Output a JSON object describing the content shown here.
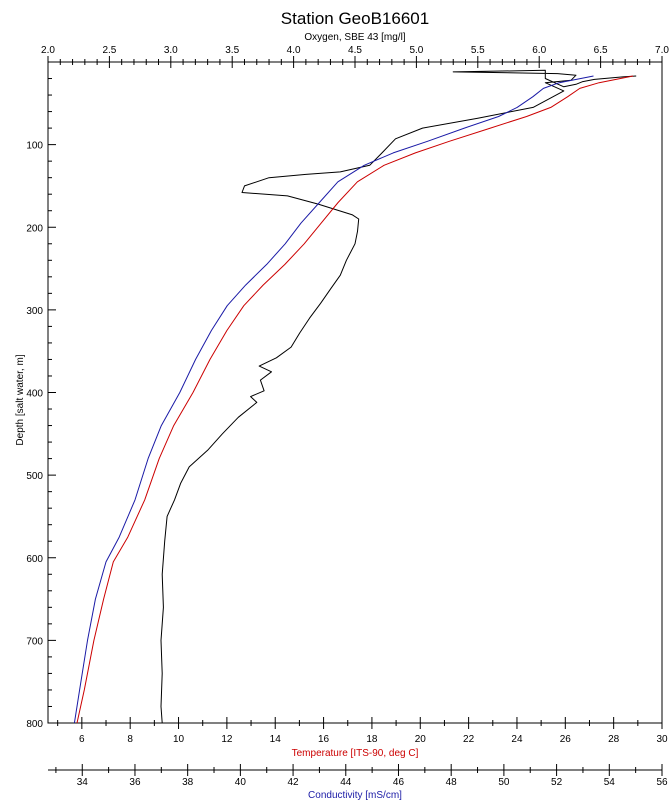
{
  "chart_data": {
    "type": "line",
    "title": "Station GeoB16601",
    "y_axis": {
      "label": "Depth [salt water, m]",
      "range": [
        0,
        800
      ],
      "ticks": [
        100,
        200,
        300,
        400,
        500,
        600,
        700,
        800
      ],
      "inverted": true
    },
    "x_axes": [
      {
        "id": "oxygen",
        "label": "Oxygen, SBE 43 [mg/l]",
        "position": "top",
        "range": [
          2.0,
          7.0
        ],
        "ticks": [
          "2.0",
          "2.5",
          "3.0",
          "3.5",
          "4.0",
          "4.5",
          "5.0",
          "5.5",
          "6.0",
          "6.5",
          "7.0"
        ],
        "color": "#000000"
      },
      {
        "id": "temperature",
        "label": "Temperature [ITS-90, deg C]",
        "position": "bottom",
        "range": [
          4.6,
          30
        ],
        "ticks": [
          "6",
          "8",
          "10",
          "12",
          "14",
          "16",
          "18",
          "20",
          "22",
          "24",
          "26",
          "28",
          "30"
        ],
        "color": "#cc0000"
      },
      {
        "id": "conductivity",
        "label": "Conductivity [mS/cm]",
        "position": "bottom-outer",
        "range": [
          32.7,
          56
        ],
        "ticks": [
          "34",
          "36",
          "38",
          "40",
          "42",
          "44",
          "46",
          "48",
          "50",
          "52",
          "54",
          "56"
        ],
        "color": "#1a1aa6"
      }
    ],
    "series": [
      {
        "axis": "oxygen",
        "color": "#000000",
        "points": [
          [
            6.79,
            17
          ],
          [
            6.68,
            18
          ],
          [
            6.45,
            21
          ],
          [
            6.35,
            24
          ],
          [
            6.3,
            27
          ],
          [
            6.2,
            30
          ],
          [
            6.05,
            20
          ],
          [
            6.05,
            10
          ],
          [
            5.3,
            12
          ],
          [
            6.15,
            14
          ],
          [
            6.3,
            16
          ],
          [
            6.26,
            22
          ],
          [
            6.05,
            25
          ],
          [
            6.2,
            35
          ],
          [
            5.95,
            55
          ],
          [
            5.5,
            68
          ],
          [
            5.05,
            80
          ],
          [
            4.83,
            93
          ],
          [
            4.72,
            110
          ],
          [
            4.62,
            125
          ],
          [
            4.38,
            133
          ],
          [
            4.1,
            136
          ],
          [
            3.8,
            140
          ],
          [
            3.6,
            150
          ],
          [
            3.58,
            158
          ],
          [
            3.95,
            162
          ],
          [
            4.2,
            172
          ],
          [
            4.48,
            185
          ],
          [
            4.53,
            190
          ],
          [
            4.52,
            205
          ],
          [
            4.5,
            220
          ],
          [
            4.43,
            240
          ],
          [
            4.38,
            258
          ],
          [
            4.3,
            275
          ],
          [
            4.22,
            292
          ],
          [
            4.13,
            310
          ],
          [
            4.05,
            328
          ],
          [
            3.98,
            345
          ],
          [
            3.86,
            358
          ],
          [
            3.72,
            368
          ],
          [
            3.82,
            375
          ],
          [
            3.73,
            385
          ],
          [
            3.76,
            398
          ],
          [
            3.65,
            405
          ],
          [
            3.7,
            412
          ],
          [
            3.55,
            430
          ],
          [
            3.42,
            450
          ],
          [
            3.3,
            470
          ],
          [
            3.15,
            490
          ],
          [
            3.08,
            510
          ],
          [
            3.03,
            530
          ],
          [
            2.97,
            550
          ],
          [
            2.95,
            580
          ],
          [
            2.93,
            620
          ],
          [
            2.94,
            660
          ],
          [
            2.92,
            700
          ],
          [
            2.93,
            740
          ],
          [
            2.92,
            780
          ],
          [
            2.93,
            800
          ]
        ]
      },
      {
        "axis": "temperature",
        "color": "#cc0000",
        "points": [
          [
            28.8,
            17
          ],
          [
            27.4,
            25
          ],
          [
            26.6,
            32
          ],
          [
            26.1,
            42
          ],
          [
            25.4,
            55
          ],
          [
            24.4,
            66
          ],
          [
            22.9,
            80
          ],
          [
            21.2,
            96
          ],
          [
            19.8,
            110
          ],
          [
            18.5,
            125
          ],
          [
            17.4,
            145
          ],
          [
            16.6,
            170
          ],
          [
            15.9,
            195
          ],
          [
            15.2,
            220
          ],
          [
            14.4,
            245
          ],
          [
            13.5,
            270
          ],
          [
            12.7,
            295
          ],
          [
            12.0,
            325
          ],
          [
            11.3,
            360
          ],
          [
            10.6,
            400
          ],
          [
            9.8,
            440
          ],
          [
            9.2,
            480
          ],
          [
            8.6,
            530
          ],
          [
            7.9,
            575
          ],
          [
            7.3,
            605
          ],
          [
            6.9,
            650
          ],
          [
            6.5,
            700
          ],
          [
            6.1,
            760
          ],
          [
            5.8,
            800
          ]
        ]
      },
      {
        "axis": "conductivity",
        "color": "#1a1aa6",
        "points": [
          [
            53.4,
            17
          ],
          [
            52.1,
            25
          ],
          [
            51.5,
            32
          ],
          [
            51.1,
            42
          ],
          [
            50.5,
            55
          ],
          [
            49.8,
            66
          ],
          [
            48.5,
            80
          ],
          [
            47.1,
            96
          ],
          [
            45.8,
            110
          ],
          [
            44.7,
            125
          ],
          [
            43.7,
            145
          ],
          [
            43.0,
            170
          ],
          [
            42.3,
            195
          ],
          [
            41.7,
            220
          ],
          [
            41.0,
            245
          ],
          [
            40.2,
            270
          ],
          [
            39.5,
            295
          ],
          [
            38.9,
            325
          ],
          [
            38.3,
            360
          ],
          [
            37.7,
            400
          ],
          [
            37.0,
            440
          ],
          [
            36.5,
            480
          ],
          [
            36.0,
            530
          ],
          [
            35.4,
            575
          ],
          [
            34.9,
            605
          ],
          [
            34.5,
            650
          ],
          [
            34.2,
            700
          ],
          [
            33.9,
            760
          ],
          [
            33.7,
            800
          ]
        ]
      }
    ]
  }
}
